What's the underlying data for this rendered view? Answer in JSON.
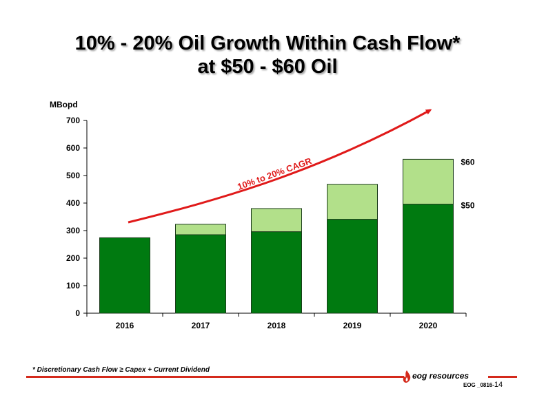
{
  "title": {
    "line1": "10% - 20% Oil Growth Within Cash Flow*",
    "line2": "at $50 - $60 Oil"
  },
  "footnote": "* Discretionary Cash Flow ≥ Capex + Current Dividend",
  "logo": {
    "text": "eog resources",
    "icon": "flame-icon"
  },
  "slide_code": {
    "code": "EOG _0816-",
    "page": "14"
  },
  "colors": {
    "base_bar": "#007a10",
    "upside_bar": "#b2e08a",
    "arrow": "#e01a1a",
    "rule": "#d42a1c"
  },
  "chart_data": {
    "type": "bar",
    "stacked": true,
    "categories": [
      "2016",
      "2017",
      "2018",
      "2019",
      "2020"
    ],
    "series": [
      {
        "name": "$50",
        "values": [
          274,
          285,
          296,
          341,
          396
        ]
      },
      {
        "name": "$60",
        "values": [
          0,
          38,
          84,
          127,
          163
        ]
      }
    ],
    "totals": [
      274,
      323,
      380,
      468,
      559
    ],
    "ylabel": "MBopd",
    "xlabel": "",
    "ylim": [
      0,
      700
    ],
    "yticks": [
      0,
      100,
      200,
      300,
      400,
      500,
      600,
      700
    ],
    "grid": false,
    "legend": "direct labels right of last bar",
    "annotation": {
      "text": "10% to 20% CAGR",
      "type": "curved arrow rising from 2016 toward 2020"
    }
  }
}
